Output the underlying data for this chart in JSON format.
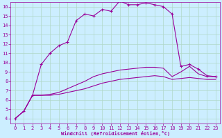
{
  "xlabel": "Windchill (Refroidissement éolien,°C)",
  "bg_color": "#cceeff",
  "grid_color": "#b0d8c8",
  "line_color": "#990099",
  "x_ticks": [
    0,
    1,
    2,
    3,
    4,
    5,
    6,
    7,
    8,
    9,
    10,
    11,
    12,
    13,
    14,
    15,
    16,
    17,
    18,
    19,
    20,
    21,
    22,
    23
  ],
  "y_ticks": [
    4,
    5,
    6,
    7,
    8,
    9,
    10,
    11,
    12,
    13,
    14,
    15,
    16
  ],
  "xlim": [
    -0.5,
    23.5
  ],
  "ylim": [
    3.5,
    16.5
  ],
  "series": [
    {
      "x": [
        0,
        1,
        2,
        3,
        4,
        5,
        6,
        7,
        8,
        9,
        10,
        11,
        12,
        13,
        14,
        15,
        16,
        17,
        18,
        19,
        20,
        21,
        22,
        23
      ],
      "y": [
        4.0,
        4.8,
        6.5,
        9.8,
        11.0,
        11.8,
        12.2,
        14.5,
        15.2,
        15.0,
        15.7,
        15.5,
        16.6,
        16.2,
        16.2,
        16.4,
        16.2,
        16.0,
        15.2,
        9.6,
        9.8,
        9.3,
        8.6,
        8.5
      ],
      "marker": true
    },
    {
      "x": [
        0,
        1,
        2,
        3,
        4,
        5,
        6,
        7,
        8,
        9,
        10,
        11,
        12,
        13,
        14,
        15,
        16,
        17,
        18,
        19,
        20,
        21,
        22,
        23
      ],
      "y": [
        4.0,
        4.8,
        6.5,
        6.5,
        6.6,
        6.8,
        7.2,
        7.6,
        8.0,
        8.5,
        8.8,
        9.0,
        9.2,
        9.3,
        9.4,
        9.5,
        9.5,
        9.4,
        8.5,
        9.0,
        9.6,
        8.8,
        8.5,
        8.5
      ],
      "marker": false
    },
    {
      "x": [
        0,
        1,
        2,
        3,
        4,
        5,
        6,
        7,
        8,
        9,
        10,
        11,
        12,
        13,
        14,
        15,
        16,
        17,
        18,
        19,
        20,
        21,
        22,
        23
      ],
      "y": [
        4.0,
        4.8,
        6.5,
        6.5,
        6.5,
        6.6,
        6.8,
        7.0,
        7.2,
        7.5,
        7.8,
        8.0,
        8.2,
        8.3,
        8.4,
        8.5,
        8.6,
        8.5,
        8.2,
        8.3,
        8.4,
        8.3,
        8.2,
        8.2
      ],
      "marker": false
    }
  ]
}
